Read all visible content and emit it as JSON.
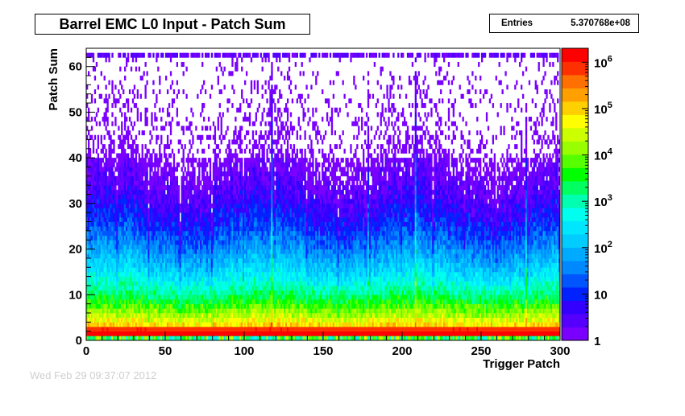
{
  "chart_data": {
    "type": "heatmap",
    "title": "Barrel EMC L0 Input - Patch Sum",
    "xlabel": "Trigger Patch",
    "ylabel": "Patch Sum",
    "xlim": [
      0,
      300
    ],
    "ylim": [
      0,
      64
    ],
    "x_ticks": [
      "0",
      "50",
      "100",
      "150",
      "200",
      "250",
      "300"
    ],
    "y_ticks": [
      "0",
      "10",
      "20",
      "30",
      "40",
      "50",
      "60"
    ],
    "z_scale": "log",
    "z_range": [
      1,
      2000000
    ],
    "z_tick_labels": [
      "1",
      "10",
      "10^2",
      "10^3",
      "10^4",
      "10^5",
      "10^6"
    ],
    "z_tick_values": [
      1,
      10,
      100,
      1000,
      10000,
      100000,
      1000000
    ],
    "palette": [
      "#7a00ff",
      "#5500ff",
      "#3300ff",
      "#0022ff",
      "#0055ff",
      "#0088ff",
      "#00aaff",
      "#00ccff",
      "#00e6ff",
      "#00ffee",
      "#00ffb0",
      "#00ff60",
      "#00ff00",
      "#55ff00",
      "#99ff00",
      "#ccff00",
      "#ffff00",
      "#ffd000",
      "#ffa000",
      "#ff7000",
      "#ff3000",
      "#ff0000"
    ],
    "row_peak_log_counts": [
      3.5,
      6.2,
      5.9,
      4.9,
      4.6,
      4.3,
      4.05,
      3.8,
      3.55,
      3.35,
      3.15,
      2.95,
      2.75,
      2.58,
      2.42,
      2.27,
      2.12,
      1.98,
      1.84,
      1.71,
      1.58,
      1.46,
      1.35,
      1.24,
      1.13,
      1.03,
      0.93,
      0.84,
      0.75,
      0.66,
      0.58,
      0.5,
      0.43,
      0.36,
      0.29,
      0.23,
      0.17,
      0.12,
      0.07,
      0.03
    ],
    "entries_label": "Entries",
    "entries_value": "5.370768e+08"
  },
  "timestamp_text": "Wed Feb 29 09:37:07 2012"
}
